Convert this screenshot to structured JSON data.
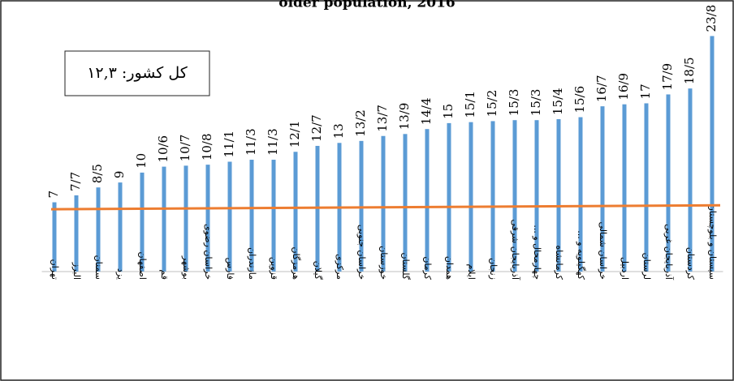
{
  "chart_data": {
    "type": "bar",
    "title": "older population, 2016",
    "annotation": "کل کشور: ۱۲,۳",
    "categories": [
      "تهران",
      "البرز",
      "سمنان",
      "یزد",
      "اصفهان",
      "قم",
      "بوشهر",
      "خراسان رضوی",
      "فارس",
      "مازندران",
      "قزوین",
      "هرمزگان",
      "گیلان",
      "مرکزی",
      "خراسان جنوبی",
      "خوزستان",
      "گلستان",
      "کرمان",
      "همدان",
      "ایلام",
      "زنجان",
      "آذربایجان شرقی",
      "چهارمحال و ...",
      "کرمانشاه",
      "کهگیلویه و ...",
      "خراسان شمالی",
      "اردبیل",
      "لرستان",
      "آذربایجان غربی",
      "کردستان",
      "سیستان و بلوچستان"
    ],
    "values": [
      7,
      7.7,
      8.5,
      9,
      10,
      10.6,
      10.7,
      10.8,
      11.1,
      11.3,
      11.3,
      12.1,
      12.7,
      13,
      13.2,
      13.7,
      13.9,
      14.4,
      15,
      15.1,
      15.2,
      15.3,
      15.3,
      15.4,
      15.6,
      16.7,
      16.9,
      17,
      17.9,
      18.5,
      23.8
    ],
    "value_labels": [
      "7",
      "7/7",
      "8/5",
      "9",
      "10",
      "10/6",
      "10/7",
      "10/8",
      "11/1",
      "11/3",
      "11/3",
      "12/1",
      "12/7",
      "13",
      "13/2",
      "13/7",
      "13/9",
      "14/4",
      "15",
      "15/1",
      "15/2",
      "15/3",
      "15/3",
      "15/4",
      "15/6",
      "16/7",
      "16/9",
      "17",
      "17/9",
      "18/5",
      "23/8"
    ],
    "color": "#5b9bd5",
    "ylim": [
      0,
      24
    ],
    "trend_line": {
      "color": "#ed7d31",
      "values": [
        6.3,
        6.7
      ]
    }
  }
}
